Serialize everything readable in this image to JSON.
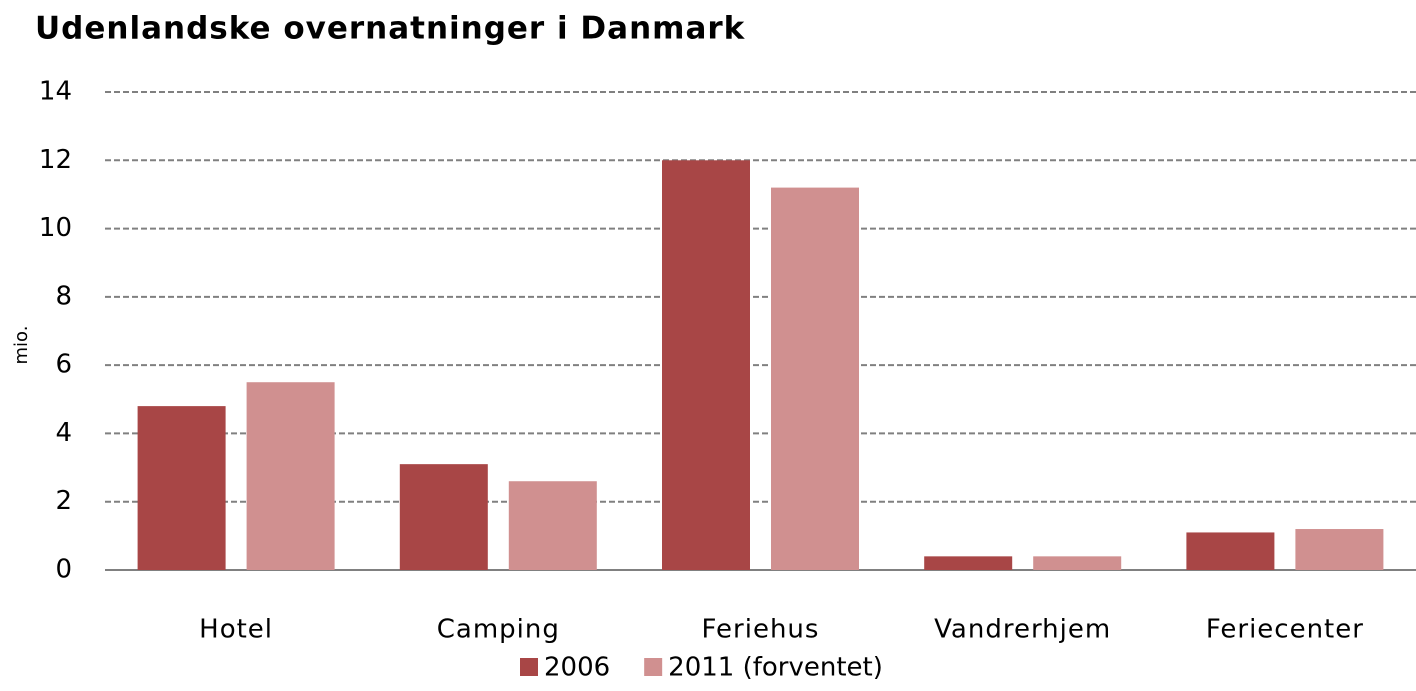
{
  "chart_data": {
    "type": "bar",
    "title": "Udenlandske overnatninger i Danmark",
    "y_label": "mio.",
    "categories": [
      "Hotel",
      "Camping",
      "Feriehus",
      "Vandrerhjem",
      "Feriecenter"
    ],
    "series": [
      {
        "name": "2006",
        "color": "#a84646",
        "values": [
          4.8,
          3.1,
          12.0,
          0.4,
          1.1
        ]
      },
      {
        "name": "2011 (forventet)",
        "color": "#d09090",
        "values": [
          5.5,
          2.6,
          11.2,
          0.4,
          1.2
        ]
      }
    ],
    "ylim": [
      0,
      14
    ],
    "yticks": [
      0,
      2,
      4,
      6,
      8,
      10,
      12,
      14
    ],
    "grid": true,
    "legend": "bottom"
  }
}
